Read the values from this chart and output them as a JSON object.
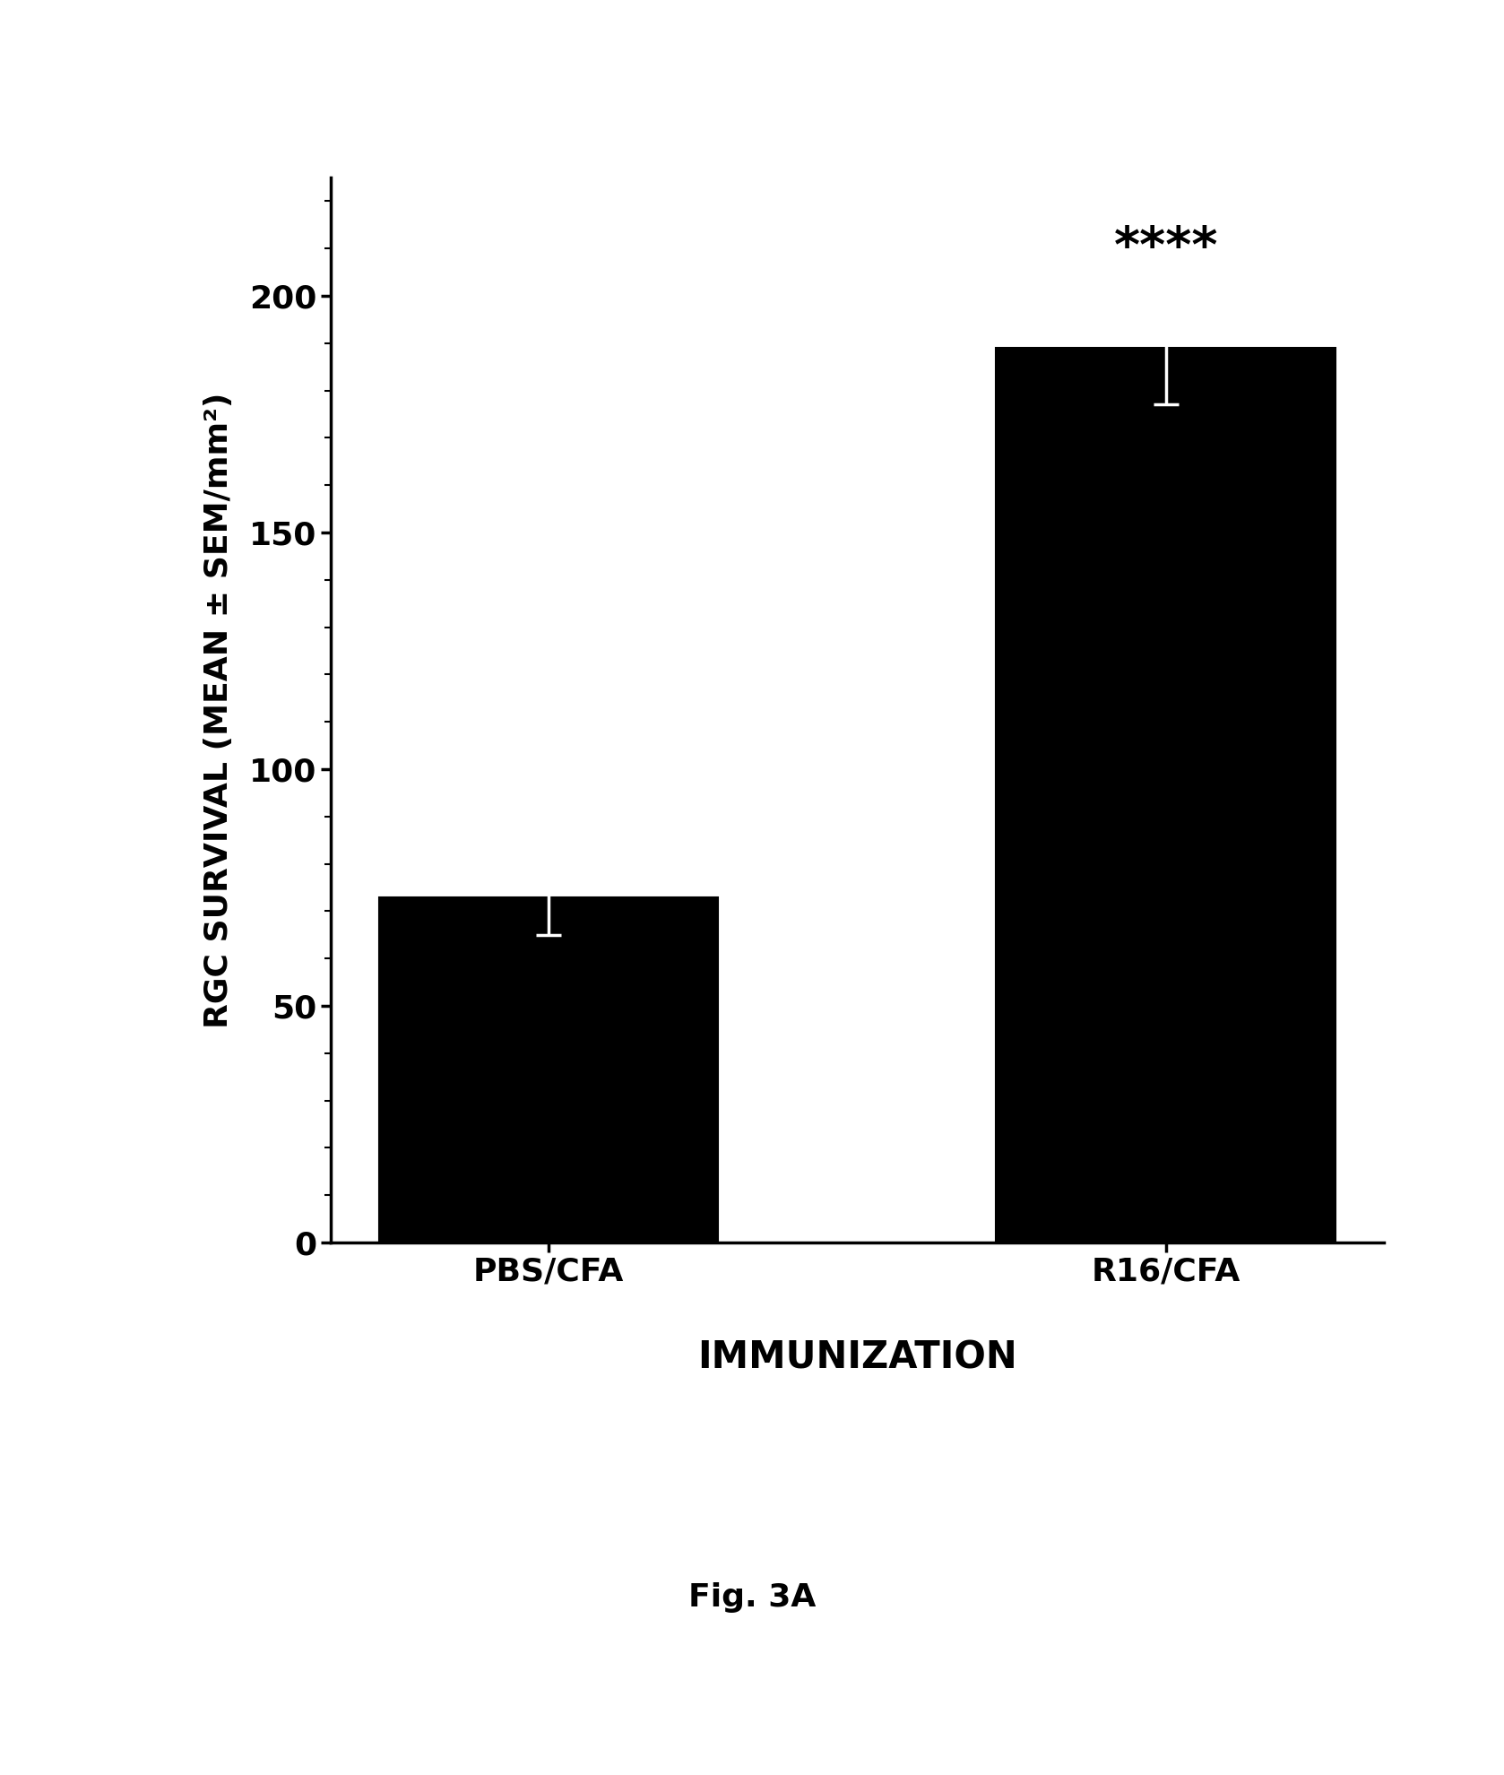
{
  "categories": [
    "PBS/CFA",
    "R16/CFA"
  ],
  "values": [
    73,
    189
  ],
  "errors": [
    8,
    12
  ],
  "bar_color": "#000000",
  "ylim": [
    0,
    225
  ],
  "yticks": [
    0,
    50,
    100,
    150,
    200
  ],
  "ylabel": "RGC SURVIVAL (MEAN ± SEM/mm²)",
  "xlabel_ticks": "PBS/CFA    R16/CFA",
  "xlabel_main": "IMMUNIZATION",
  "significance_text": "****",
  "significance_bar_index": 1,
  "caption": "Fig. 3A",
  "background_color": "#ffffff",
  "bar_width": 0.55,
  "axis_fontsize": 26,
  "tick_fontsize": 26,
  "sig_fontsize": 40,
  "caption_fontsize": 26,
  "xlabel_main_fontsize": 30
}
